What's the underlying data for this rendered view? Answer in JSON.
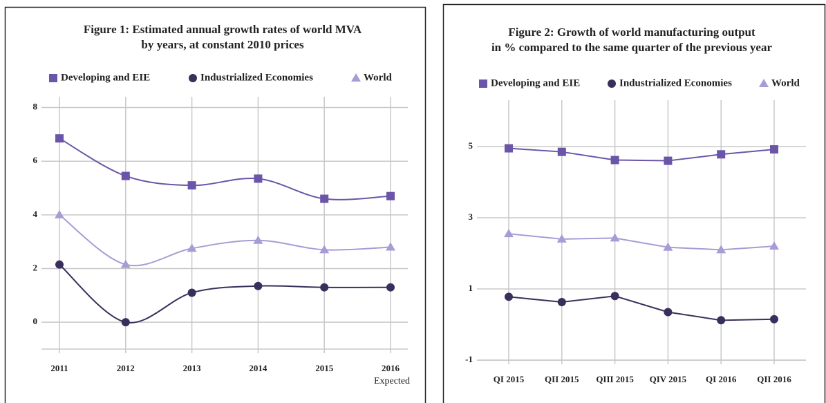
{
  "chart_data": [
    {
      "type": "line",
      "smooth": true,
      "title": [
        "Figure 1: Estimated annual growth rates of world MVA",
        "by years, at constant 2010 prices"
      ],
      "categories": [
        "2011",
        "2012",
        "2013",
        "2014",
        "2015",
        "2016"
      ],
      "annotations": [
        {
          "text": "Expected"
        }
      ],
      "series": [
        {
          "name": "Developing and EIE",
          "color": "#6a55a8",
          "marker": "square",
          "values": [
            6.85,
            5.45,
            5.1,
            5.35,
            4.6,
            4.7
          ]
        },
        {
          "name": "Industrialized Economies",
          "color": "#3a2f5b",
          "marker": "circle",
          "values": [
            2.15,
            0,
            1.1,
            1.35,
            1.3,
            1.3
          ]
        },
        {
          "name": "World",
          "color": "#a99bd6",
          "marker": "triangle",
          "values": [
            4.0,
            2.15,
            2.75,
            3.05,
            2.7,
            2.8
          ]
        }
      ],
      "ylim": [
        -1,
        8.4
      ],
      "yticks": [
        0,
        2,
        4,
        6,
        8
      ],
      "grid": true,
      "legend": "top"
    },
    {
      "type": "line",
      "smooth": false,
      "title": [
        "Figure 2: Growth of world manufacturing output",
        "in % compared to the same quarter of the previous year"
      ],
      "categories": [
        "QI 2015",
        "QII 2015",
        "QIII 2015",
        "QIV 2015",
        "QI 2016",
        "QII 2016"
      ],
      "series": [
        {
          "name": "Developing and EIE",
          "color": "#6a55a8",
          "marker": "square",
          "values": [
            4.95,
            4.85,
            4.62,
            4.6,
            4.78,
            4.92
          ]
        },
        {
          "name": "Industrialized Economies",
          "color": "#3a2f5b",
          "marker": "circle",
          "values": [
            0.78,
            0.63,
            0.8,
            0.35,
            0.12,
            0.15
          ]
        },
        {
          "name": "World",
          "color": "#a99bd6",
          "marker": "triangle",
          "values": [
            2.55,
            2.4,
            2.43,
            2.17,
            2.1,
            2.2
          ]
        }
      ],
      "ylim": [
        -1,
        6.3
      ],
      "yticks": [
        -1,
        1,
        3,
        5
      ],
      "grid": true,
      "legend": "top"
    }
  ]
}
